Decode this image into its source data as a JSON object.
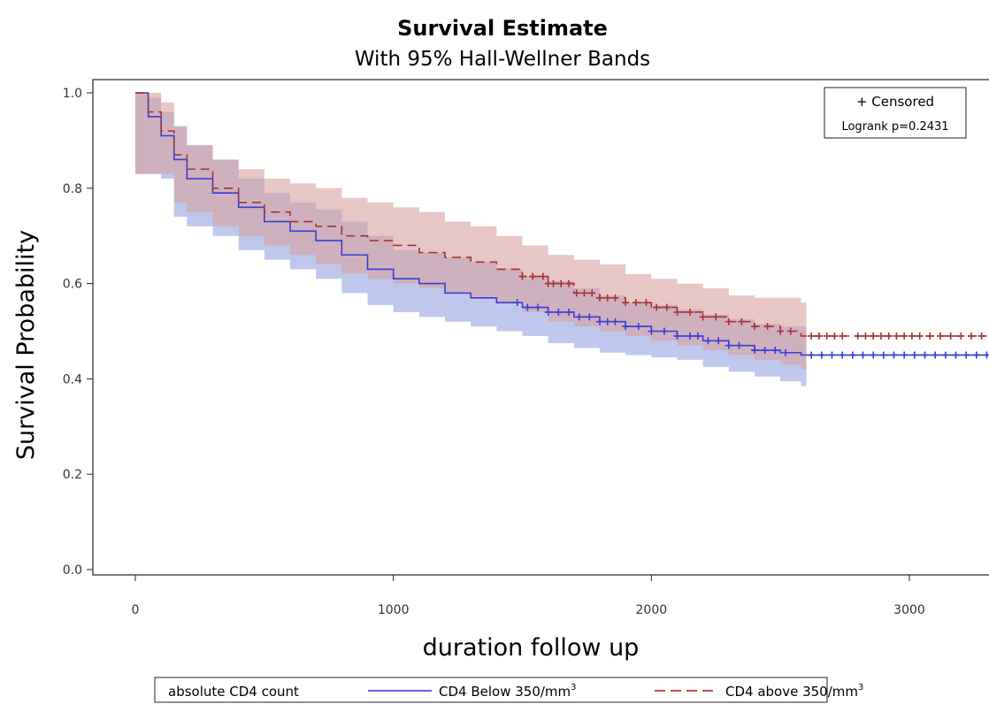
{
  "chart_data": {
    "type": "line",
    "title": "Survival Estimate",
    "subtitle": "With 95% Hall-Wellner Bands",
    "xlabel": "duration follow up",
    "ylabel": "Survival Probability",
    "xlim": [
      0,
      3300
    ],
    "ylim": [
      0,
      1.0
    ],
    "x_ticks": [
      0,
      1000,
      2000,
      3000
    ],
    "y_ticks": [
      0.0,
      0.2,
      0.4,
      0.6,
      0.8,
      1.0
    ],
    "x_tick_labels": [
      "0",
      "1000",
      "2000",
      "3000"
    ],
    "y_tick_labels": [
      "0.0",
      "0.2",
      "0.4",
      "0.6",
      "0.8",
      "1.0"
    ],
    "inset": {
      "censored_label": "+ Censored",
      "logrank": "Logrank p=0.2431"
    },
    "legend": {
      "title": "absolute CD4 count",
      "placement": "bottom",
      "entries": [
        {
          "label": "CD4 Below 350/mm",
          "sup": "3",
          "color": "#4b4bdc",
          "dash": "solid"
        },
        {
          "label": "CD4 above 350/mm",
          "sup": "3",
          "color": "#b03a3a",
          "dash": "dashed"
        }
      ]
    },
    "series": [
      {
        "name": "CD4 Below 350/mm3",
        "color": "#3b3bd6",
        "band_color": "#aab6e6",
        "x": [
          0,
          50,
          100,
          150,
          200,
          300,
          400,
          500,
          600,
          700,
          800,
          900,
          1000,
          1100,
          1200,
          1300,
          1400,
          1500,
          1600,
          1700,
          1800,
          1900,
          2000,
          2100,
          2200,
          2300,
          2400,
          2500,
          2580,
          3300
        ],
        "y": [
          1.0,
          0.95,
          0.91,
          0.86,
          0.82,
          0.79,
          0.76,
          0.73,
          0.71,
          0.69,
          0.66,
          0.63,
          0.61,
          0.6,
          0.58,
          0.57,
          0.56,
          0.55,
          0.54,
          0.53,
          0.52,
          0.51,
          0.5,
          0.49,
          0.48,
          0.47,
          0.46,
          0.455,
          0.45,
          0.45
        ],
        "lower": [
          0.83,
          0.83,
          0.82,
          0.74,
          0.72,
          0.7,
          0.67,
          0.65,
          0.63,
          0.61,
          0.58,
          0.555,
          0.54,
          0.53,
          0.52,
          0.51,
          0.5,
          0.49,
          0.475,
          0.465,
          0.455,
          0.45,
          0.445,
          0.44,
          0.425,
          0.415,
          0.405,
          0.395,
          0.385,
          null
        ],
        "upper": [
          1.0,
          0.99,
          0.96,
          0.93,
          0.89,
          0.86,
          0.82,
          0.79,
          0.77,
          0.755,
          0.73,
          0.7,
          0.67,
          0.665,
          0.655,
          0.645,
          0.63,
          0.615,
          0.605,
          0.59,
          0.575,
          0.56,
          0.555,
          0.545,
          0.535,
          0.525,
          0.515,
          0.51,
          0.51,
          null
        ],
        "censored_x": [
          1480,
          1520,
          1560,
          1600,
          1640,
          1680,
          1720,
          1760,
          1800,
          1830,
          1860,
          1900,
          1950,
          2000,
          2050,
          2100,
          2150,
          2180,
          2220,
          2260,
          2300,
          2340,
          2400,
          2440,
          2480,
          2520,
          2620,
          2660,
          2700,
          2740,
          2780,
          2820,
          2860,
          2900,
          2940,
          2980,
          3020,
          3060,
          3100,
          3140,
          3180,
          3220,
          3260,
          3300
        ]
      },
      {
        "name": "CD4 above 350/mm3",
        "color": "#a83232",
        "band_color": "#d8a0a0",
        "x": [
          0,
          50,
          100,
          150,
          200,
          300,
          400,
          500,
          600,
          700,
          800,
          900,
          1000,
          1100,
          1200,
          1300,
          1400,
          1500,
          1600,
          1700,
          1800,
          1900,
          2000,
          2100,
          2200,
          2300,
          2400,
          2500,
          2580,
          3300
        ],
        "y": [
          1.0,
          0.96,
          0.92,
          0.87,
          0.84,
          0.8,
          0.77,
          0.75,
          0.73,
          0.72,
          0.7,
          0.69,
          0.68,
          0.665,
          0.655,
          0.645,
          0.63,
          0.615,
          0.6,
          0.58,
          0.57,
          0.56,
          0.55,
          0.54,
          0.53,
          0.52,
          0.51,
          0.5,
          0.49,
          0.49
        ],
        "lower": [
          0.83,
          0.83,
          0.83,
          0.77,
          0.75,
          0.72,
          0.7,
          0.68,
          0.66,
          0.64,
          0.62,
          0.61,
          0.6,
          0.59,
          0.58,
          0.57,
          0.56,
          0.54,
          0.52,
          0.51,
          0.5,
          0.49,
          0.48,
          0.47,
          0.46,
          0.45,
          0.44,
          0.43,
          0.42,
          null
        ],
        "upper": [
          1.0,
          1.0,
          0.98,
          0.93,
          0.89,
          0.86,
          0.84,
          0.82,
          0.81,
          0.8,
          0.78,
          0.77,
          0.76,
          0.75,
          0.73,
          0.72,
          0.7,
          0.68,
          0.66,
          0.65,
          0.64,
          0.62,
          0.61,
          0.6,
          0.59,
          0.575,
          0.57,
          0.57,
          0.56,
          null
        ],
        "censored_x": [
          1500,
          1540,
          1580,
          1600,
          1620,
          1650,
          1680,
          1710,
          1740,
          1770,
          1800,
          1830,
          1860,
          1900,
          1940,
          1980,
          2020,
          2060,
          2100,
          2150,
          2200,
          2250,
          2300,
          2350,
          2400,
          2450,
          2500,
          2540,
          2620,
          2650,
          2680,
          2710,
          2740,
          2800,
          2830,
          2860,
          2890,
          2920,
          2950,
          2980,
          3010,
          3040,
          3080,
          3120,
          3160,
          3200,
          3240,
          3280
        ]
      }
    ]
  }
}
